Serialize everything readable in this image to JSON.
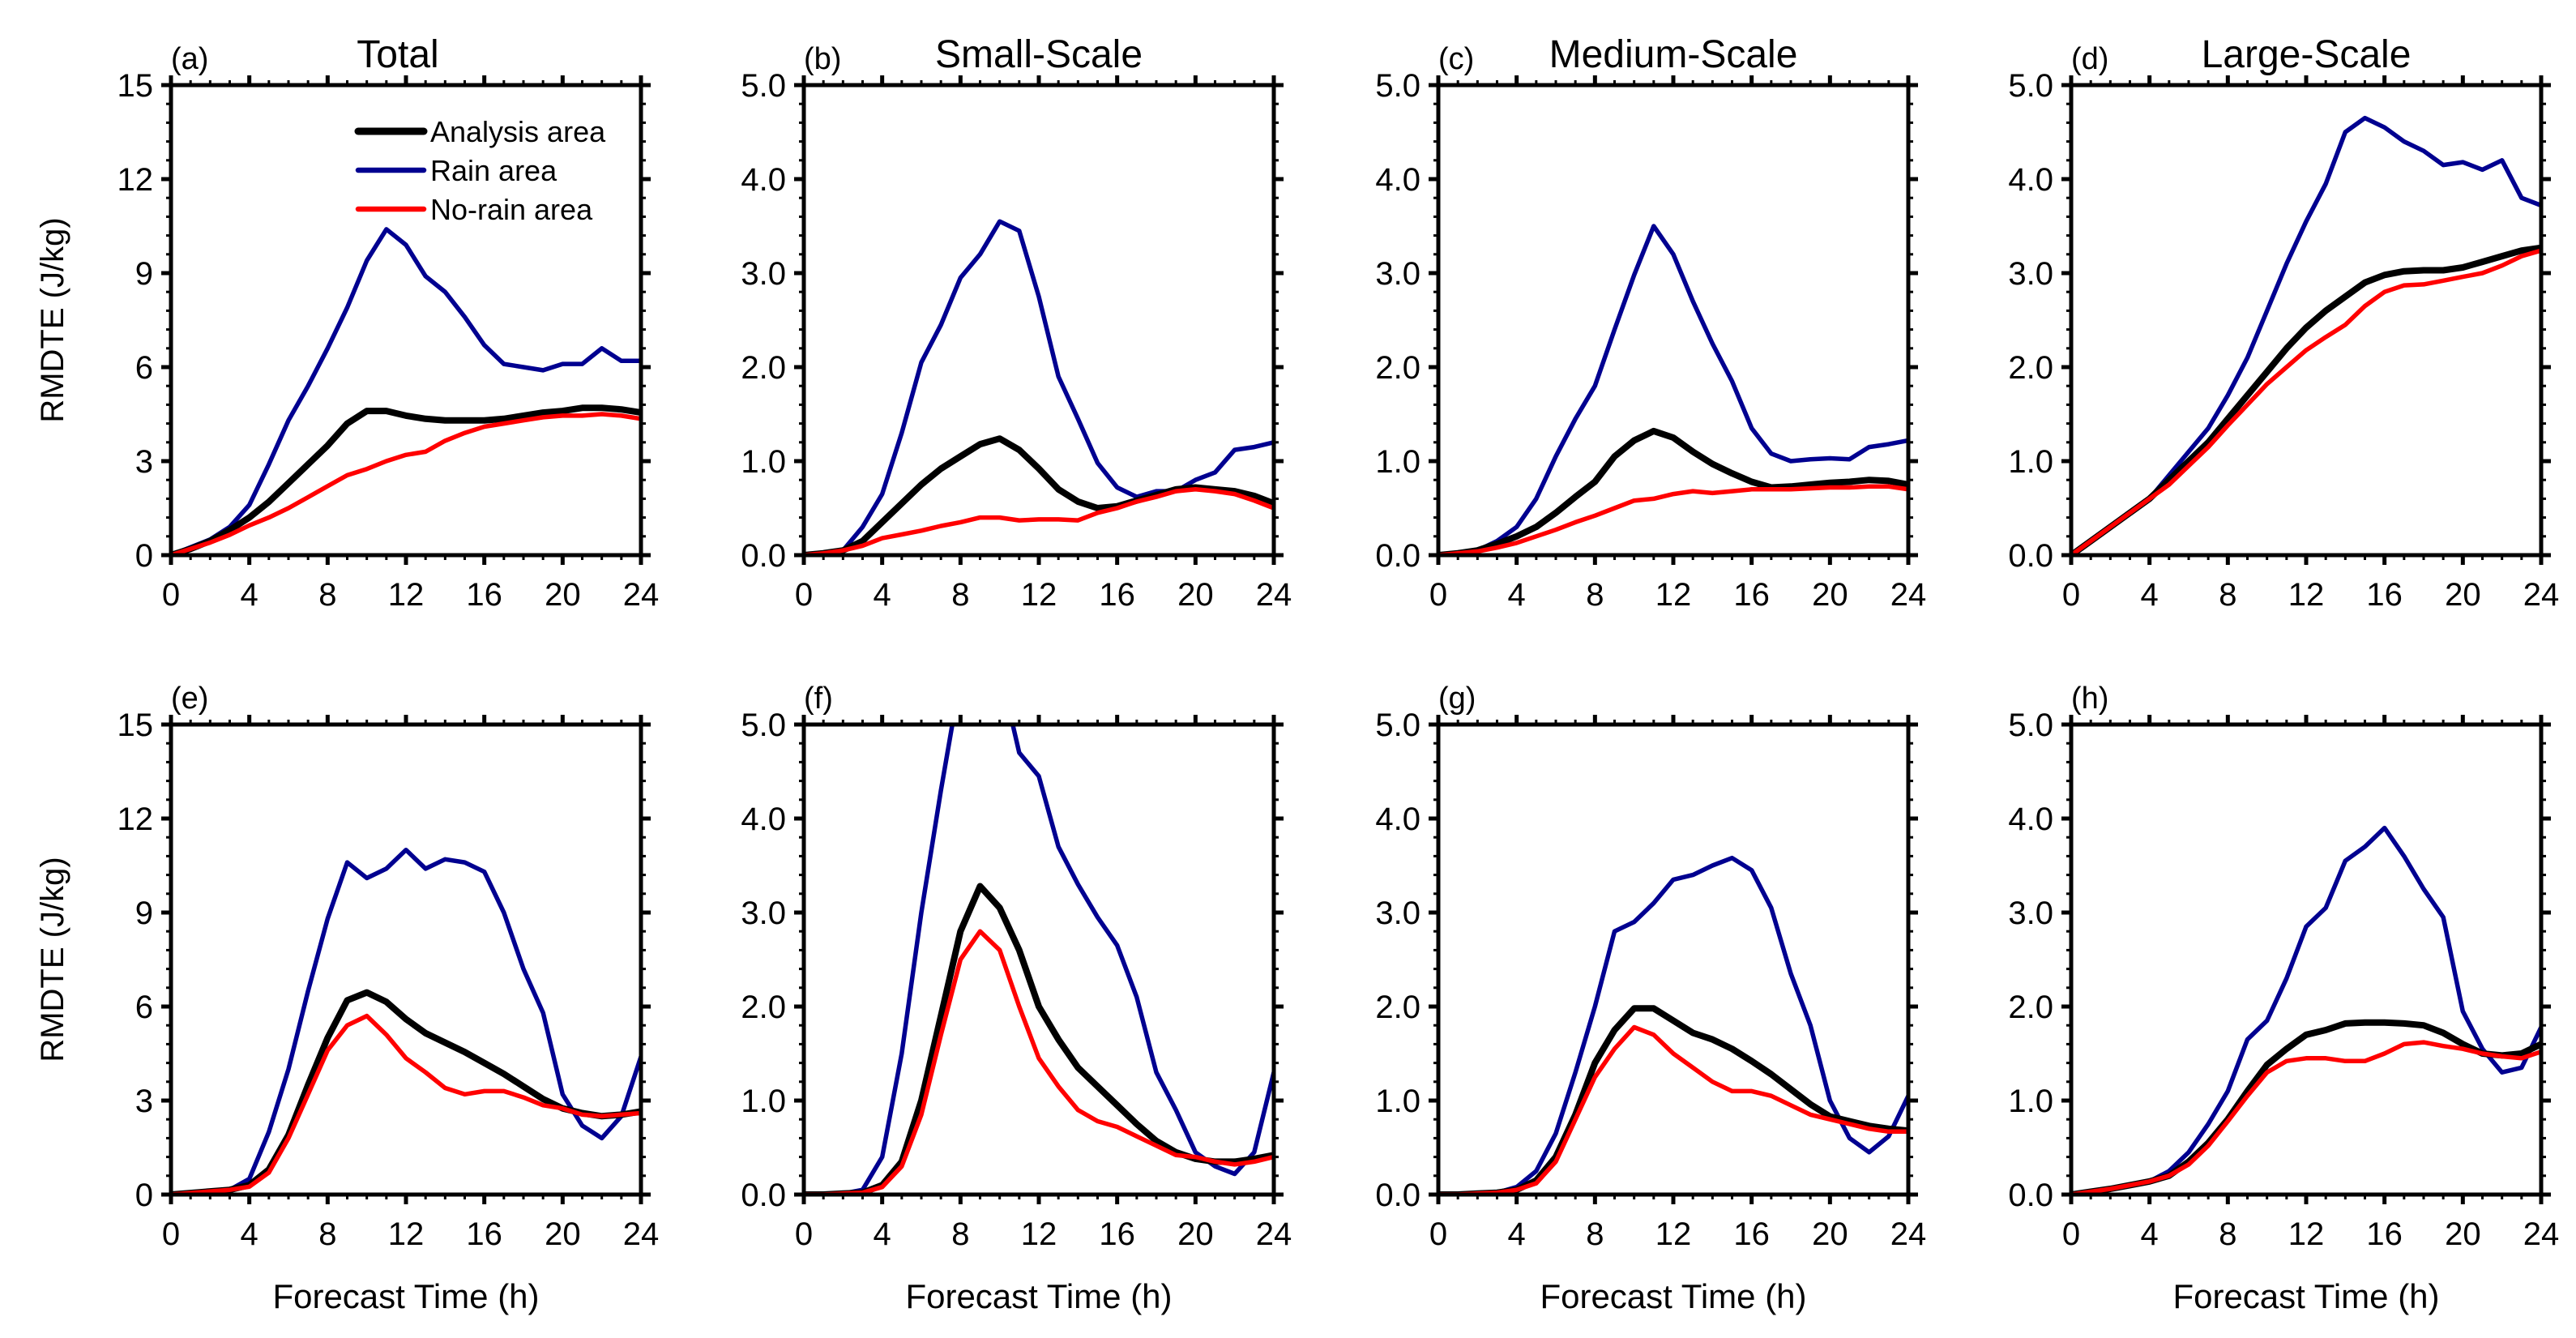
{
  "chart_data": {
    "type": "line",
    "figure_layout": "2 rows x 4 columns",
    "ylabel": "RMDTE (J/kg)",
    "xlabel": "Forecast Time (h)",
    "x": [
      0,
      1,
      2,
      3,
      4,
      5,
      6,
      7,
      8,
      9,
      10,
      11,
      12,
      13,
      14,
      15,
      16,
      17,
      18,
      19,
      20,
      21,
      22,
      23,
      24
    ],
    "xlim": [
      0,
      24
    ],
    "xticks": [
      "0",
      "4",
      "8",
      "12",
      "16",
      "20",
      "24"
    ],
    "legend": {
      "placement": "top-right of panel (a)",
      "entries": [
        "Analysis area",
        "Rain area",
        "No-rain area"
      ]
    },
    "colors": {
      "Analysis area": "#000000",
      "Rain area": "#000090",
      "No-rain area": "#ff0000"
    },
    "column_titles": [
      "Total",
      "Small-Scale",
      "Medium-Scale",
      "Large-Scale"
    ],
    "panels": [
      {
        "label": "(a)",
        "title": "Total",
        "ylim": [
          0,
          15
        ],
        "yticks": [
          "0",
          "3",
          "6",
          "9",
          "12",
          "15"
        ],
        "series": [
          {
            "name": "Analysis area",
            "values": [
              0,
              0.2,
              0.45,
              0.8,
              1.2,
              1.7,
              2.3,
              2.9,
              3.5,
              4.2,
              4.6,
              4.6,
              4.45,
              4.35,
              4.3,
              4.3,
              4.3,
              4.35,
              4.45,
              4.55,
              4.6,
              4.7,
              4.7,
              4.65,
              4.55
            ]
          },
          {
            "name": "Rain area",
            "values": [
              0,
              0.25,
              0.5,
              0.9,
              1.6,
              2.9,
              4.3,
              5.4,
              6.6,
              7.9,
              9.4,
              10.4,
              9.9,
              8.9,
              8.4,
              7.6,
              6.7,
              6.1,
              6.0,
              5.9,
              6.1,
              6.1,
              6.6,
              6.2,
              6.2
            ]
          },
          {
            "name": "No-rain area",
            "values": [
              0,
              0.2,
              0.4,
              0.65,
              0.95,
              1.2,
              1.5,
              1.85,
              2.2,
              2.55,
              2.75,
              3.0,
              3.2,
              3.3,
              3.65,
              3.9,
              4.1,
              4.2,
              4.3,
              4.4,
              4.45,
              4.45,
              4.5,
              4.45,
              4.35
            ]
          }
        ]
      },
      {
        "label": "(b)",
        "title": "Small-Scale",
        "ylim": [
          0,
          5
        ],
        "yticks": [
          "0.0",
          "1.0",
          "2.0",
          "3.0",
          "4.0",
          "5.0"
        ],
        "series": [
          {
            "name": "Analysis area",
            "values": [
              0,
              0.02,
              0.05,
              0.15,
              0.35,
              0.55,
              0.75,
              0.92,
              1.05,
              1.18,
              1.24,
              1.12,
              0.92,
              0.7,
              0.57,
              0.5,
              0.52,
              0.58,
              0.64,
              0.7,
              0.72,
              0.7,
              0.68,
              0.63,
              0.55
            ]
          },
          {
            "name": "Rain area",
            "values": [
              0,
              0.02,
              0.05,
              0.3,
              0.65,
              1.3,
              2.05,
              2.45,
              2.95,
              3.2,
              3.55,
              3.45,
              2.75,
              1.9,
              1.45,
              0.98,
              0.72,
              0.62,
              0.68,
              0.68,
              0.8,
              0.88,
              1.12,
              1.15,
              1.2
            ]
          },
          {
            "name": "No-rain area",
            "values": [
              0,
              0.02,
              0.05,
              0.1,
              0.18,
              0.22,
              0.26,
              0.31,
              0.35,
              0.4,
              0.4,
              0.37,
              0.38,
              0.38,
              0.37,
              0.45,
              0.5,
              0.57,
              0.62,
              0.68,
              0.7,
              0.68,
              0.65,
              0.58,
              0.5
            ]
          }
        ]
      },
      {
        "label": "(c)",
        "title": "Medium-Scale",
        "ylim": [
          0,
          5
        ],
        "yticks": [
          "0.0",
          "1.0",
          "2.0",
          "3.0",
          "4.0",
          "5.0"
        ],
        "series": [
          {
            "name": "Analysis area",
            "values": [
              0,
              0.02,
              0.05,
              0.12,
              0.2,
              0.3,
              0.45,
              0.62,
              0.78,
              1.05,
              1.22,
              1.32,
              1.25,
              1.1,
              0.97,
              0.87,
              0.78,
              0.72,
              0.73,
              0.75,
              0.77,
              0.78,
              0.8,
              0.79,
              0.75
            ]
          },
          {
            "name": "Rain area",
            "values": [
              0,
              0.02,
              0.05,
              0.15,
              0.3,
              0.6,
              1.05,
              1.45,
              1.8,
              2.4,
              2.98,
              3.5,
              3.2,
              2.7,
              2.25,
              1.85,
              1.35,
              1.08,
              1.0,
              1.02,
              1.03,
              1.02,
              1.15,
              1.18,
              1.22
            ]
          },
          {
            "name": "No-rain area",
            "values": [
              0,
              0.02,
              0.04,
              0.08,
              0.13,
              0.2,
              0.27,
              0.35,
              0.42,
              0.5,
              0.58,
              0.6,
              0.65,
              0.68,
              0.66,
              0.68,
              0.7,
              0.7,
              0.7,
              0.71,
              0.72,
              0.72,
              0.73,
              0.73,
              0.7
            ]
          }
        ]
      },
      {
        "label": "(d)",
        "title": "Large-Scale",
        "ylim": [
          0,
          5
        ],
        "yticks": [
          "0.0",
          "1.0",
          "2.0",
          "3.0",
          "4.0",
          "5.0"
        ],
        "series": [
          {
            "name": "Analysis area",
            "values": [
              0,
              0.15,
              0.3,
              0.45,
              0.6,
              0.8,
              1.0,
              1.2,
              1.45,
              1.7,
              1.95,
              2.2,
              2.42,
              2.6,
              2.75,
              2.9,
              2.98,
              3.02,
              3.03,
              3.03,
              3.06,
              3.12,
              3.18,
              3.24,
              3.27
            ]
          },
          {
            "name": "Rain area",
            "values": [
              0,
              0.15,
              0.3,
              0.45,
              0.6,
              0.85,
              1.1,
              1.35,
              1.7,
              2.1,
              2.6,
              3.1,
              3.55,
              3.95,
              4.5,
              4.65,
              4.55,
              4.4,
              4.3,
              4.15,
              4.18,
              4.1,
              4.2,
              3.8,
              3.72
            ]
          },
          {
            "name": "No-rain area",
            "values": [
              0,
              0.15,
              0.3,
              0.45,
              0.6,
              0.75,
              0.95,
              1.15,
              1.38,
              1.6,
              1.82,
              2.0,
              2.18,
              2.32,
              2.45,
              2.65,
              2.8,
              2.87,
              2.88,
              2.92,
              2.96,
              3.0,
              3.08,
              3.18,
              3.24
            ]
          }
        ]
      },
      {
        "label": "(e)",
        "title": "",
        "ylim": [
          0,
          15
        ],
        "yticks": [
          "0",
          "3",
          "6",
          "9",
          "12",
          "15"
        ],
        "series": [
          {
            "name": "Analysis area",
            "values": [
              0,
              0.05,
              0.1,
              0.15,
              0.3,
              0.8,
              1.9,
              3.5,
              5.0,
              6.2,
              6.45,
              6.15,
              5.6,
              5.15,
              4.85,
              4.55,
              4.2,
              3.85,
              3.45,
              3.05,
              2.75,
              2.6,
              2.5,
              2.55,
              2.65
            ]
          },
          {
            "name": "Rain area",
            "values": [
              0,
              0.05,
              0.1,
              0.15,
              0.5,
              2.0,
              4.0,
              6.5,
              8.8,
              10.6,
              10.1,
              10.4,
              11.0,
              10.4,
              10.7,
              10.6,
              10.3,
              9.0,
              7.2,
              5.8,
              3.2,
              2.2,
              1.8,
              2.5,
              4.4
            ]
          },
          {
            "name": "No-rain area",
            "values": [
              0,
              0.05,
              0.1,
              0.15,
              0.25,
              0.7,
              1.8,
              3.2,
              4.6,
              5.4,
              5.7,
              5.1,
              4.35,
              3.9,
              3.4,
              3.2,
              3.3,
              3.3,
              3.1,
              2.85,
              2.75,
              2.55,
              2.5,
              2.55,
              2.6
            ]
          }
        ]
      },
      {
        "label": "(f)",
        "title": "",
        "ylim": [
          0,
          5
        ],
        "yticks": [
          "0.0",
          "1.0",
          "2.0",
          "3.0",
          "4.0",
          "5.0"
        ],
        "series": [
          {
            "name": "Analysis area",
            "values": [
              0,
              0,
              0.01,
              0.02,
              0.1,
              0.35,
              1.0,
              1.9,
              2.8,
              3.28,
              3.05,
              2.6,
              2.0,
              1.65,
              1.35,
              1.15,
              0.95,
              0.75,
              0.57,
              0.45,
              0.38,
              0.35,
              0.35,
              0.38,
              0.42
            ]
          },
          {
            "name": "Rain area",
            "values": [
              0,
              0,
              0.01,
              0.05,
              0.4,
              1.5,
              3.0,
              4.3,
              5.5,
              6.0,
              5.6,
              4.7,
              4.45,
              3.7,
              3.3,
              2.95,
              2.65,
              2.1,
              1.3,
              0.9,
              0.45,
              0.3,
              0.22,
              0.45,
              1.3
            ]
          },
          {
            "name": "No-rain area",
            "values": [
              0,
              0,
              0.01,
              0.02,
              0.08,
              0.3,
              0.85,
              1.7,
              2.5,
              2.8,
              2.6,
              2.0,
              1.45,
              1.15,
              0.9,
              0.78,
              0.72,
              0.62,
              0.52,
              0.42,
              0.4,
              0.35,
              0.32,
              0.35,
              0.4
            ]
          }
        ]
      },
      {
        "label": "(g)",
        "title": "",
        "ylim": [
          0,
          5
        ],
        "yticks": [
          "0.0",
          "1.0",
          "2.0",
          "3.0",
          "4.0",
          "5.0"
        ],
        "series": [
          {
            "name": "Analysis area",
            "values": [
              0,
              0,
              0.01,
              0.02,
              0.05,
              0.15,
              0.4,
              0.85,
              1.4,
              1.75,
              1.98,
              1.98,
              1.85,
              1.72,
              1.65,
              1.55,
              1.42,
              1.28,
              1.12,
              0.96,
              0.83,
              0.78,
              0.73,
              0.7,
              0.68
            ]
          },
          {
            "name": "Rain area",
            "values": [
              0,
              0,
              0.01,
              0.02,
              0.08,
              0.25,
              0.65,
              1.3,
              2.0,
              2.8,
              2.9,
              3.1,
              3.35,
              3.4,
              3.5,
              3.58,
              3.45,
              3.05,
              2.35,
              1.8,
              1.0,
              0.6,
              0.45,
              0.62,
              1.05
            ]
          },
          {
            "name": "No-rain area",
            "values": [
              0,
              0,
              0.01,
              0.02,
              0.05,
              0.12,
              0.35,
              0.8,
              1.25,
              1.55,
              1.78,
              1.7,
              1.5,
              1.35,
              1.2,
              1.1,
              1.1,
              1.05,
              0.95,
              0.85,
              0.8,
              0.75,
              0.7,
              0.67,
              0.67
            ]
          }
        ]
      },
      {
        "label": "(h)",
        "title": "",
        "ylim": [
          0,
          5
        ],
        "yticks": [
          "0.0",
          "1.0",
          "2.0",
          "3.0",
          "4.0",
          "5.0"
        ],
        "series": [
          {
            "name": "Analysis area",
            "values": [
              0,
              0.03,
              0.06,
              0.1,
              0.14,
              0.2,
              0.35,
              0.55,
              0.8,
              1.1,
              1.38,
              1.55,
              1.7,
              1.75,
              1.82,
              1.83,
              1.83,
              1.82,
              1.8,
              1.72,
              1.6,
              1.5,
              1.48,
              1.5,
              1.6
            ]
          },
          {
            "name": "Rain area",
            "values": [
              0,
              0.03,
              0.06,
              0.1,
              0.14,
              0.25,
              0.45,
              0.75,
              1.1,
              1.65,
              1.85,
              2.3,
              2.85,
              3.05,
              3.55,
              3.7,
              3.9,
              3.6,
              3.25,
              2.95,
              1.95,
              1.55,
              1.3,
              1.35,
              1.78
            ]
          },
          {
            "name": "No-rain area",
            "values": [
              0,
              0.03,
              0.06,
              0.1,
              0.14,
              0.2,
              0.32,
              0.52,
              0.78,
              1.05,
              1.3,
              1.42,
              1.45,
              1.45,
              1.42,
              1.42,
              1.5,
              1.6,
              1.62,
              1.58,
              1.55,
              1.5,
              1.47,
              1.45,
              1.52
            ]
          }
        ]
      }
    ]
  }
}
